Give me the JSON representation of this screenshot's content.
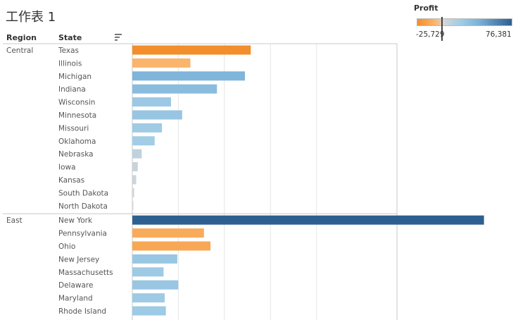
{
  "sheet_title": "工作表 1",
  "headers": {
    "region": "Region",
    "state": "State"
  },
  "legend": {
    "title": "Profit",
    "min_label": "-25,729",
    "max_label": "76,381"
  },
  "colors": {
    "negative": "#f28e2b",
    "negative_light": "#fbb369",
    "neutral": "#d6d6d6",
    "positive_light": "#a2cde6",
    "positive_mid": "#7cb2d9",
    "positive_dark": "#2e5f91",
    "grid": "#e6e6e6",
    "axis": "#c8c8c8"
  },
  "chart_data": {
    "type": "bar",
    "orientation": "horizontal",
    "measure": "Profit",
    "color_range": [
      -25729,
      76381
    ],
    "x_range": [
      0,
      48000
    ],
    "gridlines": [
      10000,
      20000,
      30000,
      40000
    ],
    "groups": [
      {
        "region": "Central",
        "states": [
          {
            "name": "Texas",
            "abs_value": 25729,
            "profit": -25729
          },
          {
            "name": "Illinois",
            "abs_value": 12608,
            "profit": -12608
          },
          {
            "name": "Michigan",
            "abs_value": 24463,
            "profit": 24463
          },
          {
            "name": "Indiana",
            "abs_value": 18383,
            "profit": 18383
          },
          {
            "name": "Wisconsin",
            "abs_value": 8402,
            "profit": 8402
          },
          {
            "name": "Minnesota",
            "abs_value": 10823,
            "profit": 10823
          },
          {
            "name": "Missouri",
            "abs_value": 6436,
            "profit": 6436
          },
          {
            "name": "Oklahoma",
            "abs_value": 4854,
            "profit": 4854
          },
          {
            "name": "Nebraska",
            "abs_value": 2037,
            "profit": 2037
          },
          {
            "name": "Iowa",
            "abs_value": 1184,
            "profit": 1184
          },
          {
            "name": "Kansas",
            "abs_value": 836,
            "profit": 836
          },
          {
            "name": "South Dakota",
            "abs_value": 394,
            "profit": 394
          },
          {
            "name": "North Dakota",
            "abs_value": 230,
            "profit": 230
          }
        ]
      },
      {
        "region": "East",
        "states": [
          {
            "name": "New York",
            "abs_value": 76381,
            "profit": 76381
          },
          {
            "name": "Pennsylvania",
            "abs_value": 15560,
            "profit": -15560
          },
          {
            "name": "Ohio",
            "abs_value": 16971,
            "profit": -16971
          },
          {
            "name": "New Jersey",
            "abs_value": 9773,
            "profit": 9773
          },
          {
            "name": "Massachusetts",
            "abs_value": 6786,
            "profit": 6786
          },
          {
            "name": "Delaware",
            "abs_value": 9977,
            "profit": 9977
          },
          {
            "name": "Maryland",
            "abs_value": 7031,
            "profit": 7031
          },
          {
            "name": "Rhode Island",
            "abs_value": 7286,
            "profit": 7286
          }
        ]
      }
    ]
  }
}
